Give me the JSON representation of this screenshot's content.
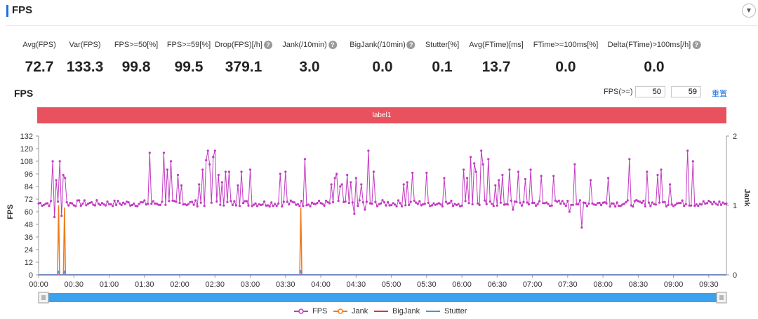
{
  "header": {
    "title": "FPS",
    "collapse_icon": "chevron-down-icon"
  },
  "metrics": [
    {
      "label": "Avg(FPS)",
      "value": "72.7",
      "help": false
    },
    {
      "label": "Var(FPS)",
      "value": "133.3",
      "help": false
    },
    {
      "label": "FPS>=50[%]",
      "value": "99.8",
      "help": false
    },
    {
      "label": "FPS>=59[%]",
      "value": "99.5",
      "help": false
    },
    {
      "label": "Drop(FPS)[/h]",
      "value": "379.1",
      "help": true
    },
    {
      "label": "Jank(/10min)",
      "value": "3.0",
      "help": true
    },
    {
      "label": "BigJank(/10min)",
      "value": "0.0",
      "help": true
    },
    {
      "label": "Stutter[%]",
      "value": "0.1",
      "help": false
    },
    {
      "label": "Avg(FTime)[ms]",
      "value": "13.7",
      "help": false
    },
    {
      "label": "FTime>=100ms[%]",
      "value": "0.0",
      "help": false
    },
    {
      "label": "Delta(FTime)>100ms[/h]",
      "value": "0.0",
      "help": true
    }
  ],
  "chart_section": {
    "title": "FPS",
    "threshold_label": "FPS(>=)",
    "threshold_values": [
      "50",
      "59"
    ],
    "reset_label": "重置",
    "band_label": "label1"
  },
  "chart_data": {
    "type": "line",
    "title": "",
    "ylabel": "FPS",
    "y2label": "Jank",
    "ylim": [
      0,
      132
    ],
    "yticks": [
      0,
      12,
      24,
      36,
      48,
      60,
      72,
      84,
      96,
      108,
      120,
      132
    ],
    "y2lim": [
      0,
      2
    ],
    "y2ticks": [
      0,
      1,
      2
    ],
    "xlim_seconds": [
      0,
      585
    ],
    "xtick_labels": [
      "00:00",
      "00:30",
      "01:00",
      "01:30",
      "02:00",
      "02:30",
      "03:00",
      "03:30",
      "04:00",
      "04:30",
      "05:00",
      "05:30",
      "06:00",
      "06:30",
      "07:00",
      "07:30",
      "08:00",
      "08:30",
      "09:00",
      "09:30"
    ],
    "grid": false,
    "legend_position": "bottom",
    "series": [
      {
        "name": "FPS",
        "color": "#c23ac2",
        "baseline": 68,
        "spikes": [
          [
            12,
            108
          ],
          [
            13,
            112
          ],
          [
            14,
            115
          ],
          [
            15,
            90
          ],
          [
            18,
            108
          ],
          [
            19,
            118
          ],
          [
            21,
            95
          ],
          [
            22,
            92
          ],
          [
            95,
            116
          ],
          [
            106,
            116
          ],
          [
            110,
            100
          ],
          [
            113,
            108
          ],
          [
            119,
            95
          ],
          [
            122,
            85
          ],
          [
            137,
            86
          ],
          [
            140,
            100
          ],
          [
            143,
            109
          ],
          [
            144,
            118
          ],
          [
            146,
            105
          ],
          [
            148,
            112
          ],
          [
            150,
            118
          ],
          [
            153,
            95
          ],
          [
            156,
            88
          ],
          [
            159,
            98
          ],
          [
            162,
            98
          ],
          [
            170,
            85
          ],
          [
            173,
            98
          ],
          [
            180,
            100
          ],
          [
            205,
            96
          ],
          [
            210,
            98
          ],
          [
            226,
            110
          ],
          [
            249,
            86
          ],
          [
            252,
            92
          ],
          [
            254,
            96
          ],
          [
            256,
            84
          ],
          [
            258,
            86
          ],
          [
            262,
            95
          ],
          [
            265,
            88
          ],
          [
            268,
            105
          ],
          [
            270,
            92
          ],
          [
            275,
            86
          ],
          [
            278,
            96
          ],
          [
            280,
            118
          ],
          [
            285,
            98
          ],
          [
            310,
            86
          ],
          [
            314,
            88
          ],
          [
            318,
            97
          ],
          [
            330,
            97
          ],
          [
            345,
            92
          ],
          [
            362,
            100
          ],
          [
            365,
            92
          ],
          [
            367,
            120
          ],
          [
            368,
            112
          ],
          [
            370,
            106
          ],
          [
            372,
            98
          ],
          [
            376,
            118
          ],
          [
            378,
            105
          ],
          [
            382,
            110
          ],
          [
            388,
            85
          ],
          [
            392,
            90
          ],
          [
            395,
            95
          ],
          [
            400,
            100
          ],
          [
            408,
            98
          ],
          [
            414,
            91
          ],
          [
            419,
            100
          ],
          [
            428,
            94
          ],
          [
            438,
            94
          ],
          [
            451,
            88
          ],
          [
            456,
            105
          ],
          [
            470,
            90
          ],
          [
            484,
            92
          ],
          [
            502,
            110
          ],
          [
            518,
            98
          ],
          [
            527,
            95
          ],
          [
            529,
            100
          ],
          [
            537,
            86
          ],
          [
            552,
            118
          ],
          [
            556,
            108
          ]
        ],
        "dips": [
          [
            14,
            55
          ],
          [
            19,
            56
          ],
          [
            268,
            58
          ],
          [
            278,
            62
          ],
          [
            404,
            62
          ],
          [
            452,
            60
          ],
          [
            462,
            45
          ]
        ]
      },
      {
        "name": "Jank",
        "color": "#f07a1a",
        "events": [
          [
            17,
            1.0
          ],
          [
            22,
            0.97
          ],
          [
            223,
            0.97
          ]
        ]
      },
      {
        "name": "BigJank",
        "color": "#e0303a",
        "events": []
      },
      {
        "name": "Stutter",
        "color": "#4d8fe8",
        "events": [
          [
            17,
            0.06
          ],
          [
            22,
            0.06
          ],
          [
            223,
            0.07
          ]
        ]
      }
    ]
  }
}
